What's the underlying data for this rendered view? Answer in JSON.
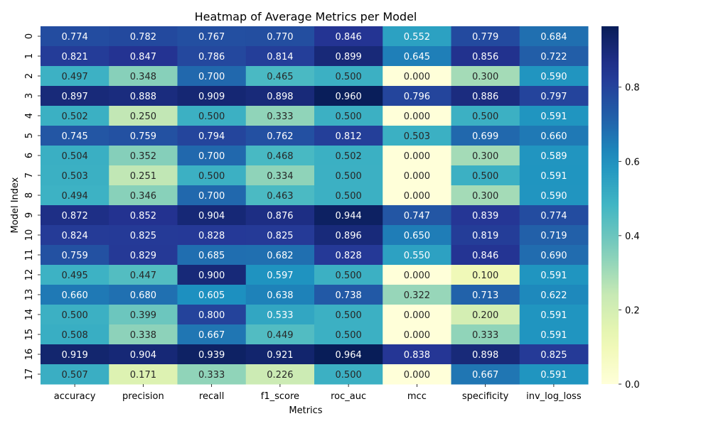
{
  "chart_data": {
    "type": "heatmap",
    "title": "Heatmap of Average Metrics per Model",
    "xlabel": "Metrics",
    "ylabel": "Model Index",
    "columns": [
      "accuracy",
      "precision",
      "recall",
      "f1_score",
      "roc_auc",
      "mcc",
      "specificity",
      "inv_log_loss"
    ],
    "rows": [
      "0",
      "1",
      "2",
      "3",
      "4",
      "5",
      "6",
      "7",
      "8",
      "9",
      "10",
      "11",
      "12",
      "13",
      "14",
      "15",
      "16",
      "17"
    ],
    "values": [
      [
        0.774,
        0.782,
        0.767,
        0.77,
        0.846,
        0.552,
        0.779,
        0.684
      ],
      [
        0.821,
        0.847,
        0.786,
        0.814,
        0.899,
        0.645,
        0.856,
        0.722
      ],
      [
        0.497,
        0.348,
        0.7,
        0.465,
        0.5,
        0.0,
        0.3,
        0.59
      ],
      [
        0.897,
        0.888,
        0.909,
        0.898,
        0.96,
        0.796,
        0.886,
        0.797
      ],
      [
        0.502,
        0.25,
        0.5,
        0.333,
        0.5,
        0.0,
        0.5,
        0.591
      ],
      [
        0.745,
        0.759,
        0.794,
        0.762,
        0.812,
        0.503,
        0.699,
        0.66
      ],
      [
        0.504,
        0.352,
        0.7,
        0.468,
        0.502,
        0.0,
        0.3,
        0.589
      ],
      [
        0.503,
        0.251,
        0.5,
        0.334,
        0.5,
        0.0,
        0.5,
        0.591
      ],
      [
        0.494,
        0.346,
        0.7,
        0.463,
        0.5,
        0.0,
        0.3,
        0.59
      ],
      [
        0.872,
        0.852,
        0.904,
        0.876,
        0.944,
        0.747,
        0.839,
        0.774
      ],
      [
        0.824,
        0.825,
        0.828,
        0.825,
        0.896,
        0.65,
        0.819,
        0.719
      ],
      [
        0.759,
        0.829,
        0.685,
        0.682,
        0.828,
        0.55,
        0.846,
        0.69
      ],
      [
        0.495,
        0.447,
        0.9,
        0.597,
        0.5,
        0.0,
        0.1,
        0.591
      ],
      [
        0.66,
        0.68,
        0.605,
        0.638,
        0.738,
        0.322,
        0.713,
        0.622
      ],
      [
        0.5,
        0.399,
        0.8,
        0.533,
        0.5,
        0.0,
        0.2,
        0.591
      ],
      [
        0.508,
        0.338,
        0.667,
        0.449,
        0.5,
        0.0,
        0.333,
        0.591
      ],
      [
        0.919,
        0.904,
        0.939,
        0.921,
        0.964,
        0.838,
        0.898,
        0.825
      ],
      [
        0.507,
        0.171,
        0.333,
        0.226,
        0.5,
        0.0,
        0.667,
        0.591
      ]
    ],
    "value_format": "3 decimals",
    "colormap": "YlGnBu",
    "vmin": 0.0,
    "vmax": 0.964,
    "colorbar_ticks": [
      "0.0",
      "0.2",
      "0.4",
      "0.6",
      "0.8"
    ],
    "colorbar_tick_values": [
      0.0,
      0.2,
      0.4,
      0.6,
      0.8
    ]
  }
}
